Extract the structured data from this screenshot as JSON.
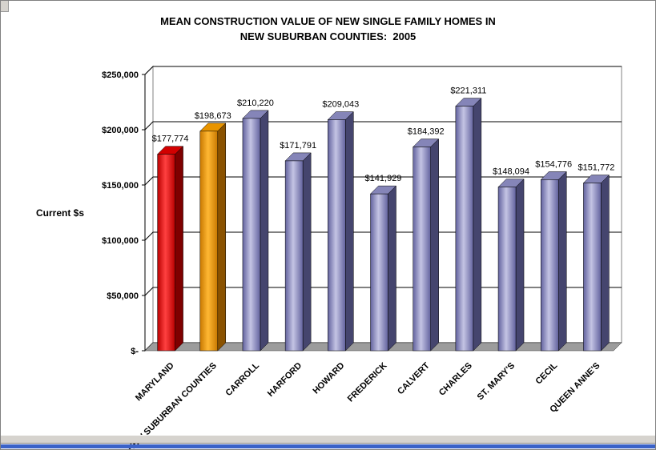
{
  "window": {
    "bg": "#FFFFFF",
    "chrome_color": "#D6D3CE",
    "accent_line_color": "#3A62C8"
  },
  "chart_data": {
    "type": "bar",
    "style": "3d-column",
    "title_line1": "MEAN CONSTRUCTION VALUE OF NEW SINGLE FAMILY HOMES IN",
    "title_line2": "NEW SUBURBAN COUNTIES:  2005",
    "ylabel": "Current $s",
    "xlabel": "",
    "ylim": [
      0,
      250000
    ],
    "y_tick_step": 50000,
    "grid": true,
    "legend": "none",
    "y_ticks": [
      {
        "value": 250000,
        "label": "$250,000"
      },
      {
        "value": 200000,
        "label": "$200,000"
      },
      {
        "value": 150000,
        "label": "$150,000"
      },
      {
        "value": 100000,
        "label": "$100,000"
      },
      {
        "value": 50000,
        "label": "$50,000"
      },
      {
        "value": 0,
        "label": "$-"
      }
    ],
    "categories": [
      "MARYLAND",
      "NEW SUBURBAN COUNTIES",
      "CARROLL",
      "HARFORD",
      "HOWARD",
      "FREDERICK",
      "CALVERT",
      "CHARLES",
      "ST. MARY'S",
      "CECIL",
      "QUEEN ANNE'S"
    ],
    "values": [
      177774,
      198673,
      210220,
      171791,
      209043,
      141929,
      184392,
      221311,
      148094,
      154776,
      151772
    ],
    "value_labels": [
      "$177,774",
      "$198,673",
      "$210,220",
      "$171,791",
      "$209,043",
      "$141,929",
      "$184,392",
      "$221,311",
      "$148,094",
      "$154,776",
      "$151,772"
    ],
    "bar_palette": [
      "red",
      "orange",
      "periwinkle",
      "periwinkle",
      "periwinkle",
      "periwinkle",
      "periwinkle",
      "periwinkle",
      "periwinkle",
      "periwinkle",
      "periwinkle"
    ],
    "palette": {
      "red": {
        "stops": [
          "#B80000",
          "#FF4040",
          "#B80000"
        ],
        "side": "#7E0000",
        "top": "#D20000"
      },
      "orange": {
        "stops": [
          "#C87800",
          "#FFB833",
          "#C87800"
        ],
        "side": "#8A5200",
        "top": "#E89400"
      },
      "periwinkle": {
        "stops": [
          "#62629E",
          "#C4C4E4",
          "#62629E"
        ],
        "side": "#45456E",
        "top": "#8585B8"
      }
    },
    "axis_color": "#000000",
    "grid_color": "#000000",
    "floor_color": "#9C9C9C",
    "wall_color": "#FFFFFF"
  }
}
